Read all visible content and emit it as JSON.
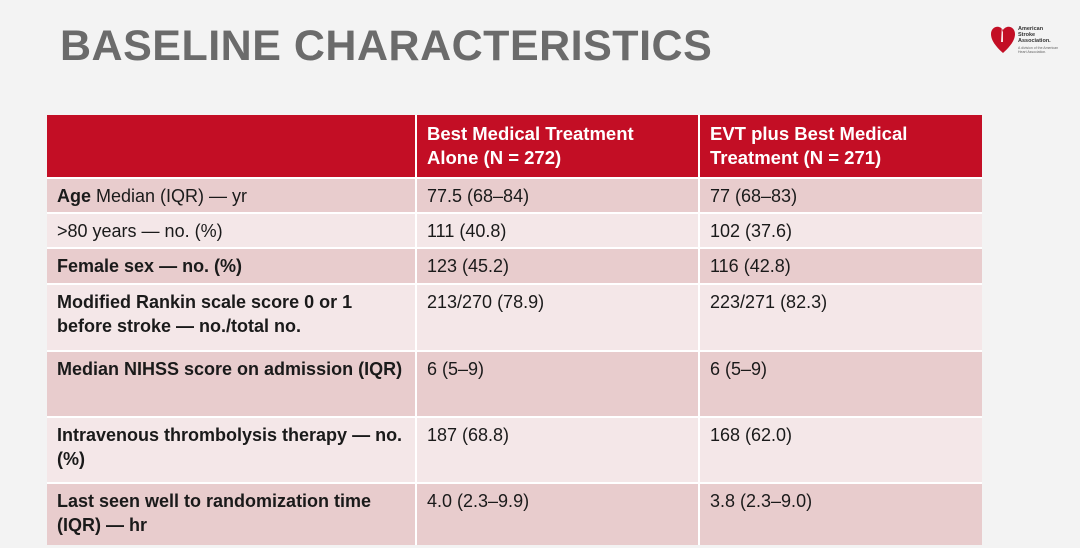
{
  "title": "BASELINE CHARACTERISTICS",
  "logo": {
    "name": "American Stroke Association",
    "line1": "American",
    "line2": "Stroke",
    "line3": "Association.",
    "subtitle": "A division of the American Heart Association.",
    "color": "#c30e25"
  },
  "table": {
    "headers": [
      "",
      "Best Medical Treatment Alone (N = 272)",
      "EVT plus Best Medical Treatment (N = 271)"
    ],
    "rows": [
      {
        "label_bold": "Age",
        "label_normal": " Median (IQR) — yr",
        "col1": "77.5 (68–84)",
        "col2": "77 (68–83)"
      },
      {
        "label_bold": "",
        "label_normal": ">80 years — no. (%)",
        "col1": "111 (40.8)",
        "col2": "102 (37.6)"
      },
      {
        "label_bold": "Female sex — no. (%)",
        "label_normal": "",
        "col1": "123 (45.2)",
        "col2": "116 (42.8)"
      },
      {
        "label_bold": "Modified Rankin scale score 0 or 1 before stroke — no./total no.",
        "label_normal": "",
        "col1": "213/270 (78.9)",
        "col2": "223/271 (82.3)"
      },
      {
        "label_bold": "Median NIHSS score on admission (IQR)",
        "label_normal": "",
        "col1": "6 (5–9)",
        "col2": "6 (5–9)"
      },
      {
        "label_bold": "Intravenous thrombolysis therapy — no. (%)",
        "label_normal": "",
        "col1": "187 (68.8)",
        "col2": "168 (62.0)"
      },
      {
        "label_bold": "Last seen well to randomization time (IQR) — hr",
        "label_normal": "",
        "col1": "4.0 (2.3–9.9)",
        "col2": "3.8 (2.3–9.0)"
      }
    ]
  }
}
